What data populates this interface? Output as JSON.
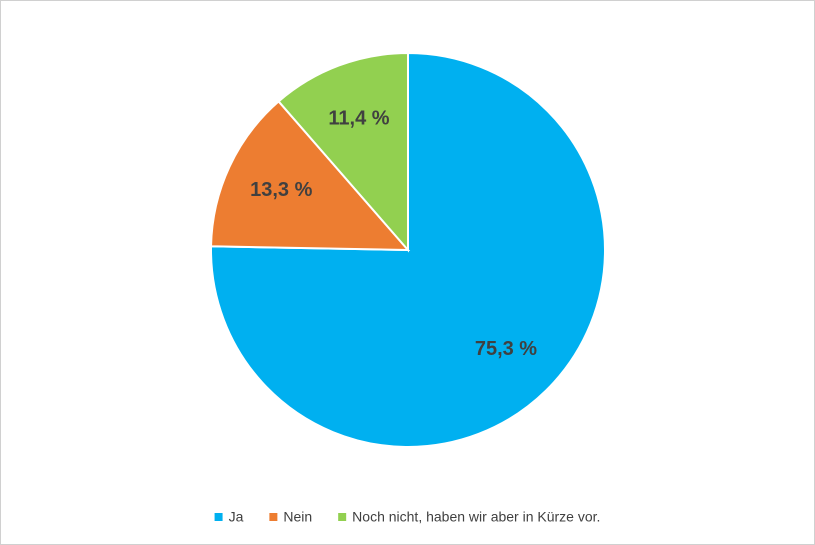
{
  "chart_data": {
    "type": "pie",
    "categories": [
      "Ja",
      "Nein",
      "Noch nicht, haben wir aber in Kürze vor."
    ],
    "values": [
      75.3,
      13.3,
      11.4
    ],
    "value_labels": [
      "75,3 %",
      "13,3 %",
      "11,4 %"
    ],
    "colors": [
      "#00b0f0",
      "#ed7d31",
      "#92d050"
    ],
    "legend": "bottom"
  }
}
